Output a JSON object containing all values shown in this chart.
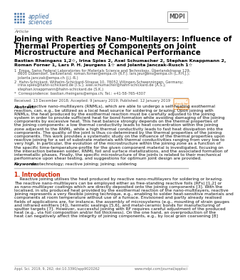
{
  "background_color": "#ffffff",
  "title_line1": "Joining with Reactive Nano-Multilayers: Influence of",
  "title_line2": "Thermal Properties of Components on Joint",
  "title_line3": "Microstructure and Mechanical Performance",
  "article_label": "Article",
  "authors_line1": "Bastian Rheingans 1,2☆, Irina Spies 2, Axel Schumacher 2, Stephan Knappmann 2,",
  "authors_line2": "Roman Forner 1, Lars P. H. Jeurgens 1☆ and Jolanta Janczak-Rusch 1☆",
  "affil1_lines": [
    "1  Empa, Swiss Federal Laboratories for Materials Science and Technology, Überlandstrasse 129,",
    "   8600 Dübendorf, Switzerland; roman.forner@empa.ch (R.F.); lars.jeurgens@empa.ch (L.P.H.J.);",
    "   jolanta.janczak@empa.ch (J.J.-R.)"
  ],
  "affil2_lines": [
    "2  Hahn-Schickard, Wilhelm-Schickard-Strasse 10, 78052 Villingen-Schwenningen, Germany;",
    "   irina.spies@hahn-schickard.de (I.S.); axel.schumacher@hahn-schickard.de (A.S.);",
    "   stephan.knappmann@hahn-schickard.de (S.K.)"
  ],
  "affil3_line": "*  Correspondence: bastian.rheingans@empa.ch; Tel.: +41-58-765-4307",
  "received": "Received: 13 December 2018; Accepted: 9 January 2019; Published: 12 January 2019",
  "abstract_body_lines": [
    "Abstract: Reactive nano-multilayers (RNMLs), which are able to undergo a self-heating exothermal",
    "reaction, can, e.g., be utilized as a local heat source for soldering or brazing. Upon joining with",
    "RNMLs, the heat produced by the exothermal reaction must be carefully adjusted to the joining",
    "system in order to provide sufficient heat for bond formation while avoiding damaging of the joining",
    "components by excessive heat. This heat balance strongly depends on the thermal properties of",
    "the joining components: a low thermal conductivity leads to heat concentration within the joining",
    "zone adjacent to the RNML, while a high thermal conductivity leads to fast heat dissipation into the",
    "components. The quality of the joint is thus co-determined by the thermal properties of the joining",
    "components. This work provides a systematic study on the influence of the thermal properties upon",
    "reactive joining for a set of substrate materials with thermal conductivities ranging from very low to",
    "very high. In particular, the evolution of the microstructure within the joining zone as a function of",
    "the specific time-temperature-profile for the given component material is investigated, focusing on",
    "the interaction between solder, RNML foil and surface metallizations, and the associated formation of",
    "intermetallic phases. Finally, the specific microstructure of the joints is related to their mechanical",
    "performance upon shear testing, and suggestions for optimum joint design are provided."
  ],
  "keywords": "Keywords: nanotechnology; reactive joining; joining; soldering",
  "section_title": "1. Introduction",
  "intro_lines": [
    "    Reactive joining utilises the heat produced by reactive nano-multilayers for soldering or brazing.",
    "The reactive nano-multilayers can be employed either as free-standing reactive foils (RFs) [1,2] or",
    "as nano-multilayer coatings which are directly deposited onto the joining components [3]. With the",
    "localised, in situ produced heat provided by the exothermal reaction of the nano-multilayers, reactive",
    "joining represents a very flexible joining technique, e.g., enabling to solder heat-sensitive materials and",
    "components at room temperature without use of a furnace. Envisioned and partly already realised",
    "fields of applications are, for instance, the assembly of microsystems (e.g., mounting of strain gauges",
    "and infrared emitters [4]), hermetic sealings [5,6], and metal-ceramic bonds for manufacturing of",
    "sputter targets [7]. However, successful joining with RF requires careful adjustment of the produced",
    "heat (e.g., via foil composition and/or foil thickness). On the one hand, an overproduction of the",
    "heat can negatively affect the integrity of joining components, e.g., by local grain coarsening [8]"
  ],
  "footer_left": "Appl. Sci. 2019, 9, 262; doi:10.3390/app9020262",
  "footer_right": "www.mdpi.com/journal/applsci",
  "logo_color": "#3d6ea0",
  "title_color": "#000000",
  "author_color": "#000000",
  "affil_color": "#444444",
  "text_color": "#111111",
  "section_color": "#cc2200",
  "divider_color": "#bbbbbb",
  "mdpi_border_color": "#999999",
  "text_size": 4.2,
  "title_size": 7.5,
  "author_size": 4.6,
  "affil_size": 3.7,
  "section_size": 5.5,
  "footer_size": 3.5
}
